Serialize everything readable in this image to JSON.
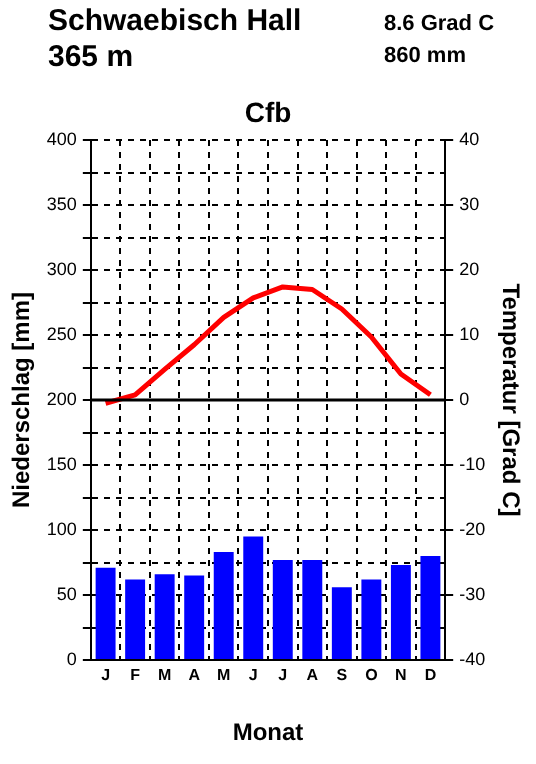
{
  "chart_data": {
    "type": "bar",
    "title": "Schwaebisch Hall",
    "subtitle": "365 m",
    "annotations": [
      "8.6 Grad C",
      "860 mm",
      "Cfb"
    ],
    "xlabel": "Monat",
    "ylabel": "Niederschlag [mm]",
    "y2label": "Temperatur [Grad C]",
    "categories": [
      "J",
      "F",
      "M",
      "A",
      "M",
      "J",
      "J",
      "A",
      "S",
      "O",
      "N",
      "D"
    ],
    "series": [
      {
        "color": "#0000ff",
        "values": [
          71,
          62,
          66,
          65,
          83,
          95,
          77,
          77,
          56,
          62,
          73,
          80
        ]
      },
      {
        "type": "line",
        "axis": "y2",
        "color": "#ff0000",
        "values": [
          -0.5,
          0.8,
          4.7,
          8.5,
          12.7,
          15.7,
          17.4,
          17.0,
          14.0,
          9.7,
          4.0,
          0.8
        ]
      }
    ],
    "ylim": [
      0,
      400
    ],
    "yticks": [
      0,
      {
        "value": 25,
        "label": null
      },
      50,
      {
        "value": 75,
        "label": null
      },
      100,
      {
        "value": 125,
        "label": null
      },
      150,
      {
        "value": 175,
        "label": null
      },
      200,
      {
        "value": 225,
        "label": null
      },
      250,
      {
        "value": 275,
        "label": null
      },
      300,
      {
        "value": 325,
        "label": null
      },
      350,
      {
        "value": 375,
        "label": null
      },
      400
    ],
    "y2lim": [
      -40,
      40
    ],
    "y2ticks": [
      -40,
      -30,
      -20,
      -10,
      0,
      10,
      20,
      30,
      40
    ],
    "ref_lines": [
      {
        "axis": "y2",
        "value": 0,
        "color": "#000000"
      }
    ],
    "grid": true,
    "legend": false,
    "marker": "none",
    "line_style": "solid"
  }
}
